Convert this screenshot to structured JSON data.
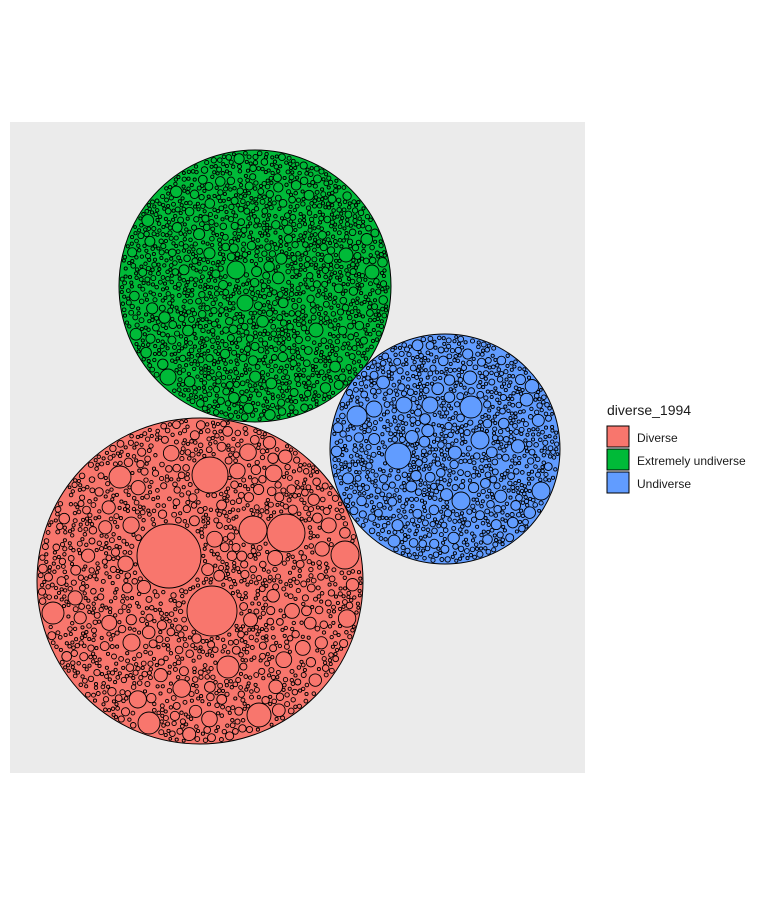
{
  "chart_data": {
    "type": "circle-packing",
    "legend": {
      "title": "diverse_1994",
      "placement": "right",
      "entries": [
        {
          "key": "diverse",
          "label": "Diverse",
          "color": "#F8766D"
        },
        {
          "key": "extremely_undiverse",
          "label": "Extremely undiverse",
          "color": "#00BA38"
        },
        {
          "key": "undiverse",
          "label": "Undiverse",
          "color": "#619CFF"
        }
      ]
    },
    "groups": [
      {
        "key": "diverse",
        "label": "Diverse",
        "color": "#F8766D",
        "relative_area": 1.0
      },
      {
        "key": "extremely_undiverse",
        "label": "Extremely undiverse",
        "color": "#00BA38",
        "relative_area": 0.675
      },
      {
        "key": "undiverse",
        "label": "Undiverse",
        "color": "#619CFF",
        "relative_area": 0.49
      }
    ],
    "panel_background": "#EBEBEB",
    "grid": false
  }
}
